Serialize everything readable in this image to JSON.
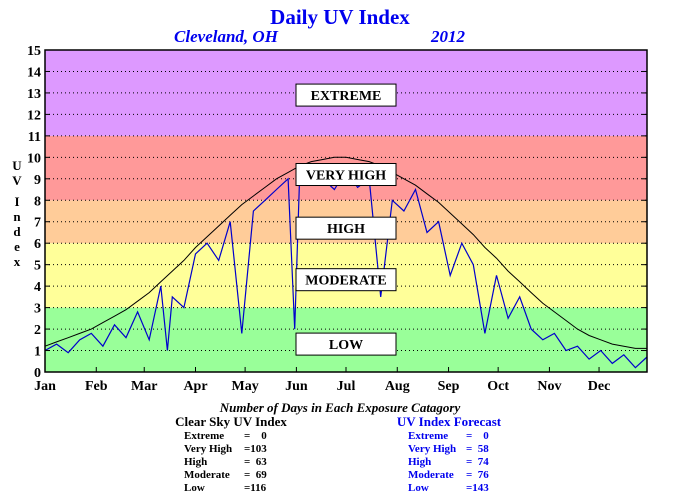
{
  "chart_data": {
    "type": "line",
    "title": "Daily UV Index",
    "location": "Cleveland, OH",
    "year": "2012",
    "ylabel": "UV Index",
    "ylim": [
      0,
      15
    ],
    "y_ticks": [
      0,
      1,
      2,
      3,
      4,
      5,
      6,
      7,
      8,
      9,
      10,
      11,
      12,
      13,
      14,
      15
    ],
    "grid": true,
    "x_ticks": [
      "Jan",
      "Feb",
      "Mar",
      "Apr",
      "May",
      "Jun",
      "Jul",
      "Aug",
      "Sep",
      "Oct",
      "Nov",
      "Dec"
    ],
    "bands": [
      {
        "label": "LOW",
        "range": [
          0,
          3
        ],
        "color": "#99ff99",
        "label_value": 1.3
      },
      {
        "label": "MODERATE",
        "range": [
          3,
          6
        ],
        "color": "#ffff99",
        "label_value": 4.3
      },
      {
        "label": "HIGH",
        "range": [
          6,
          8
        ],
        "color": "#ffcc99",
        "label_value": 6.7
      },
      {
        "label": "VERY HIGH",
        "range": [
          8,
          11
        ],
        "color": "#ff9999",
        "label_value": 9.2
      },
      {
        "label": "EXTREME",
        "range": [
          11,
          15
        ],
        "color": "#dd99ff",
        "label_value": 12.9
      }
    ],
    "series": [
      {
        "name": "Clear Sky UV Index",
        "color": "#000000",
        "x_day": [
          1,
          8,
          15,
          22,
          29,
          36,
          43,
          50,
          57,
          64,
          71,
          78,
          85,
          92,
          99,
          106,
          113,
          120,
          127,
          134,
          141,
          148,
          155,
          162,
          169,
          176,
          183,
          190,
          197,
          204,
          211,
          218,
          225,
          232,
          239,
          246,
          253,
          260,
          267,
          274,
          281,
          288,
          295,
          302,
          309,
          316,
          323,
          330,
          337,
          344,
          351,
          358,
          365
        ],
        "values": [
          1.2,
          1.4,
          1.6,
          1.8,
          2.0,
          2.3,
          2.6,
          2.9,
          3.3,
          3.7,
          4.2,
          4.7,
          5.2,
          5.8,
          6.3,
          6.8,
          7.3,
          7.8,
          8.2,
          8.6,
          9.0,
          9.3,
          9.6,
          9.8,
          9.9,
          10.0,
          10.0,
          9.9,
          9.8,
          9.6,
          9.3,
          9.0,
          8.7,
          8.3,
          7.9,
          7.4,
          6.9,
          6.4,
          5.8,
          5.3,
          4.7,
          4.2,
          3.7,
          3.2,
          2.8,
          2.4,
          2.0,
          1.7,
          1.5,
          1.3,
          1.2,
          1.1,
          1.1
        ]
      },
      {
        "name": "UV Index Forecast",
        "color": "#0000cc",
        "x_day": [
          1,
          8,
          15,
          22,
          29,
          36,
          43,
          50,
          57,
          64,
          71,
          75,
          78,
          85,
          92,
          99,
          106,
          113,
          120,
          127,
          134,
          141,
          148,
          152,
          155,
          162,
          169,
          176,
          183,
          190,
          197,
          204,
          211,
          218,
          225,
          232,
          239,
          246,
          253,
          260,
          267,
          274,
          281,
          288,
          295,
          302,
          309,
          316,
          323,
          330,
          337,
          344,
          351,
          358,
          365
        ],
        "values": [
          1.0,
          1.3,
          0.9,
          1.5,
          1.8,
          1.2,
          2.2,
          1.6,
          2.8,
          1.5,
          4.0,
          1.0,
          3.5,
          3.0,
          5.5,
          6.0,
          5.2,
          7.0,
          1.8,
          7.5,
          8.0,
          8.5,
          9.0,
          2.0,
          9.2,
          8.8,
          9.0,
          8.5,
          9.4,
          8.6,
          9.0,
          3.5,
          8.0,
          7.5,
          8.5,
          6.5,
          7.0,
          4.5,
          6.0,
          5.0,
          1.8,
          4.5,
          2.5,
          3.5,
          2.0,
          1.5,
          1.8,
          1.0,
          1.2,
          0.6,
          1.0,
          0.4,
          0.8,
          0.2,
          0.7
        ]
      }
    ]
  },
  "stats": {
    "title": "Number of Days in Each Exposure Catagory",
    "clear_sky": {
      "heading": "Clear Sky UV Index",
      "rows": [
        {
          "name": "Extreme",
          "value": "=    0"
        },
        {
          "name": "Very High",
          "value": "=103"
        },
        {
          "name": "High",
          "value": "=  63"
        },
        {
          "name": "Moderate",
          "value": "=  69"
        },
        {
          "name": "Low",
          "value": "=116"
        }
      ]
    },
    "forecast": {
      "heading": "UV Index Forecast",
      "rows": [
        {
          "name": "Extreme",
          "value": "=    0"
        },
        {
          "name": "Very High",
          "value": "=  58"
        },
        {
          "name": "High",
          "value": "=  74"
        },
        {
          "name": "Moderate",
          "value": "=  76"
        },
        {
          "name": "Low",
          "value": "=143"
        }
      ]
    }
  }
}
